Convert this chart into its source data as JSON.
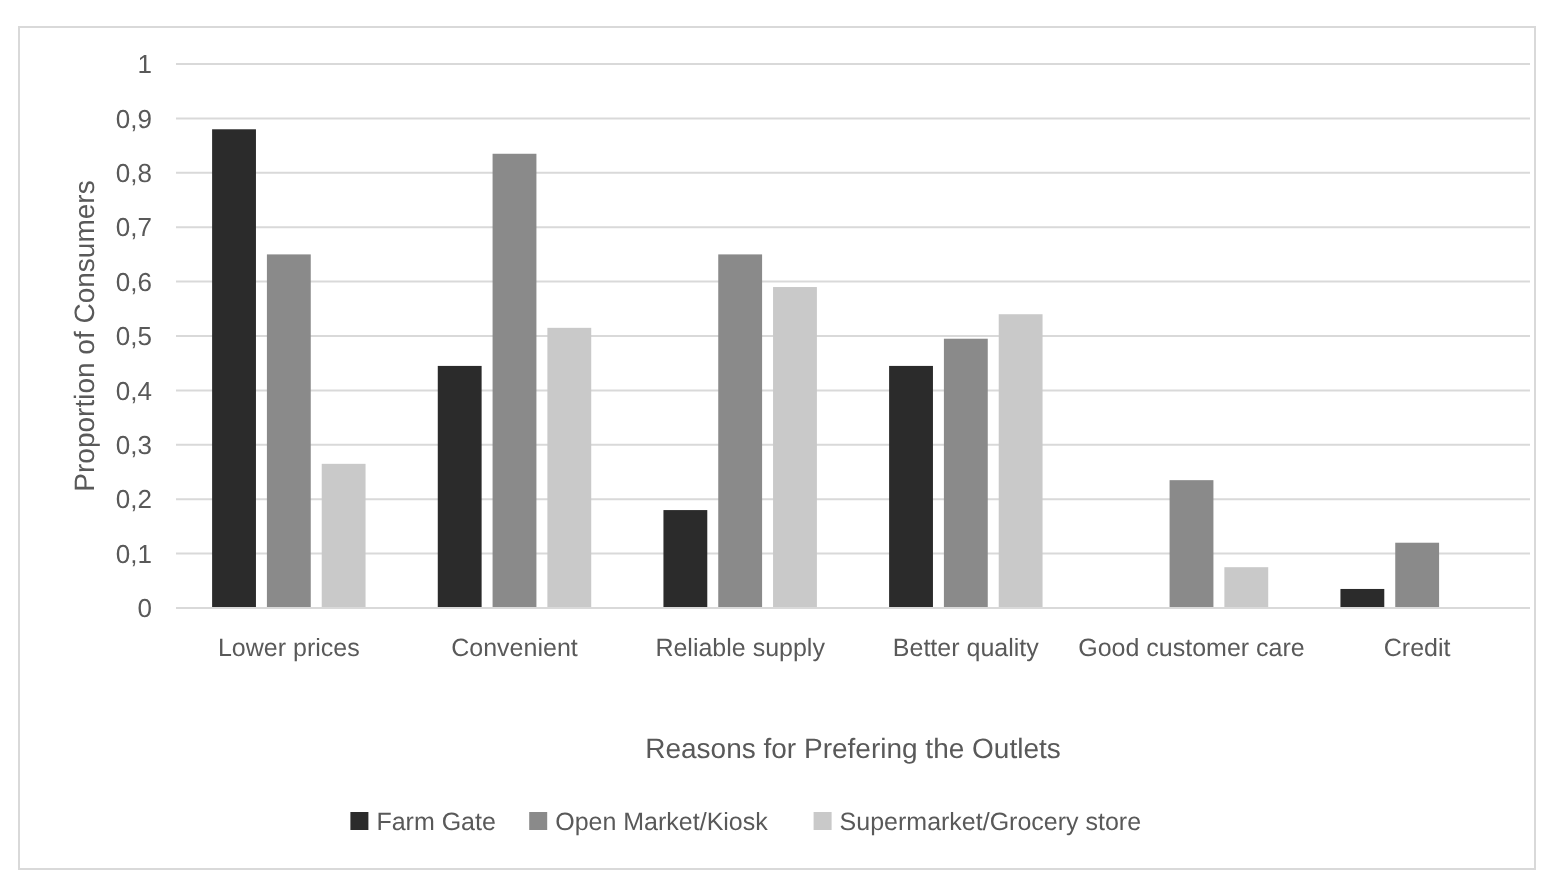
{
  "chart_data": {
    "type": "bar",
    "xlabel": "Reasons for Prefering the Outlets",
    "ylabel": "Proportion of Consumers",
    "categories": [
      "Lower prices",
      "Convenient",
      "Reliable supply",
      "Better quality",
      "Good customer care",
      "Credit"
    ],
    "series": [
      {
        "name": "Farm Gate",
        "color": "#2b2b2b",
        "values": [
          0.88,
          0.445,
          0.18,
          0.445,
          null,
          0.035
        ]
      },
      {
        "name": "Open Market/Kiosk",
        "color": "#8a8a8a",
        "values": [
          0.65,
          0.835,
          0.65,
          0.495,
          0.235,
          0.12
        ]
      },
      {
        "name": "Supermarket/Grocery store",
        "color": "#c9c9c9",
        "values": [
          0.265,
          0.515,
          0.59,
          0.54,
          0.075,
          null
        ]
      }
    ],
    "ylim": [
      0,
      1
    ],
    "yticks": [
      0,
      {
        "value": 0.1,
        "label": "0,1"
      },
      {
        "value": 0.2,
        "label": "0,2"
      },
      {
        "value": 0.3,
        "label": "0,3"
      },
      {
        "value": 0.4,
        "label": "0,4"
      },
      {
        "value": 0.5,
        "label": "0,5"
      },
      {
        "value": 0.6,
        "label": "0,6"
      },
      {
        "value": 0.7,
        "label": "0,7"
      },
      {
        "value": 0.8,
        "label": "0,8"
      },
      {
        "value": 0.9,
        "label": "0,9"
      },
      1
    ],
    "grid": "y",
    "legend": "bottom"
  }
}
